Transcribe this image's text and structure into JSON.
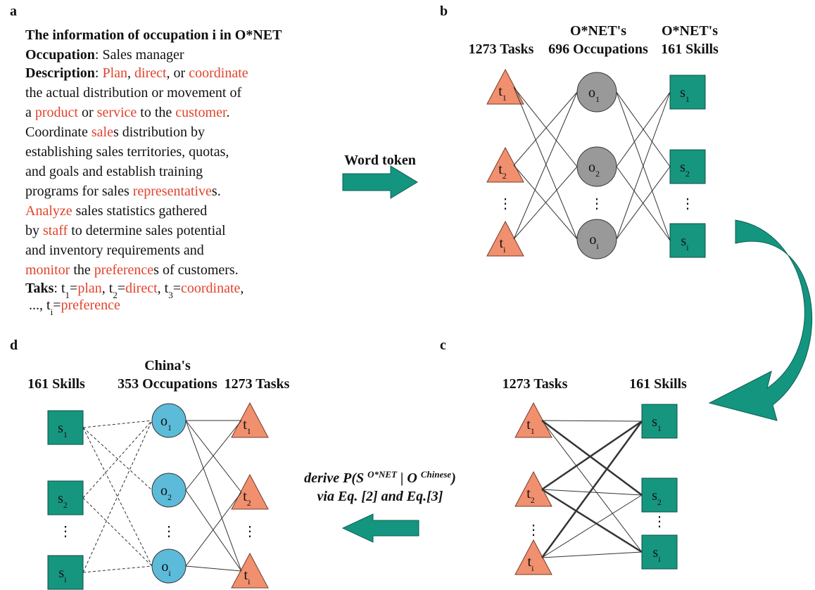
{
  "panel_a": {
    "label": "a",
    "title": "The information of occupation i in O*NET",
    "occupation": {
      "key": "Occupation",
      "value": ": Sales manager"
    },
    "description": {
      "key": "Description",
      "lines": [
        [
          {
            "text": ": "
          },
          {
            "text": "Plan",
            "highlight": true
          },
          {
            "text": ", "
          },
          {
            "text": "direct",
            "highlight": true
          },
          {
            "text": ", or "
          },
          {
            "text": "coordinate",
            "highlight": true
          }
        ],
        [
          {
            "text": "the actual distribution or movement of"
          }
        ],
        [
          {
            "text": "a "
          },
          {
            "text": "product",
            "highlight": true
          },
          {
            "text": " or "
          },
          {
            "text": "service",
            "highlight": true
          },
          {
            "text": " to the "
          },
          {
            "text": "customer",
            "highlight": true
          },
          {
            "text": "."
          }
        ],
        [
          {
            "text": "Coordinate "
          },
          {
            "text": "sale",
            "highlight": true
          },
          {
            "text": "s distribution by"
          }
        ],
        [
          {
            "text": "establishing sales territories, quotas,"
          }
        ],
        [
          {
            "text": "and goals and establish training"
          }
        ],
        [
          {
            "text": "programs for sales "
          },
          {
            "text": "representative",
            "highlight": true
          },
          {
            "text": "s."
          }
        ],
        [
          {
            "text": "Analyze",
            "highlight": true
          },
          {
            "text": " sales statistics gathered"
          }
        ],
        [
          {
            "text": "by "
          },
          {
            "text": "staff",
            "highlight": true
          },
          {
            "text": " to determine sales potential"
          }
        ],
        [
          {
            "text": "and inventory requirements and"
          }
        ],
        [
          {
            "text": "monitor",
            "highlight": true
          },
          {
            "text": " the "
          },
          {
            "text": "preference",
            "highlight": true
          },
          {
            "text": "s of customers."
          }
        ]
      ]
    },
    "tasks": {
      "key": "Taks",
      "lines": [
        [
          {
            "text": ": t"
          },
          {
            "text": "1",
            "sub": true
          },
          {
            "text": "="
          },
          {
            "text": "plan",
            "highlight": true
          },
          {
            "text": ", t"
          },
          {
            "text": "2",
            "sub": true
          },
          {
            "text": "="
          },
          {
            "text": "direct",
            "highlight": true
          },
          {
            "text": ", t"
          },
          {
            "text": "3",
            "sub": true
          },
          {
            "text": "="
          },
          {
            "text": "coordinate",
            "highlight": true
          },
          {
            "text": ","
          }
        ],
        [
          {
            "text": " ..., t"
          },
          {
            "text": "i",
            "sub": true
          },
          {
            "text": "="
          },
          {
            "text": "preference",
            "highlight": true
          }
        ]
      ]
    }
  },
  "panel_b": {
    "label": "b",
    "headers": [
      {
        "lines": [
          "1273 Tasks"
        ]
      },
      {
        "lines": [
          "O*NET's",
          "696 Occupations"
        ]
      },
      {
        "lines": [
          "O*NET's",
          "161 Skills"
        ]
      }
    ],
    "tasks": [
      {
        "letter": "t",
        "sub": "1"
      },
      {
        "letter": "t",
        "sub": "2"
      },
      {
        "letter": "t",
        "sub": "i"
      }
    ],
    "occupations": [
      {
        "letter": "o",
        "sub": "1"
      },
      {
        "letter": "o",
        "sub": "2"
      },
      {
        "letter": "o",
        "sub": "i"
      }
    ],
    "skills": [
      {
        "letter": "s",
        "sub": "1"
      },
      {
        "letter": "s",
        "sub": "2"
      },
      {
        "letter": "s",
        "sub": "i"
      }
    ],
    "gap_marker": "⋮"
  },
  "panel_c": {
    "label": "c",
    "headers": [
      {
        "lines": [
          "1273 Tasks"
        ]
      },
      {
        "lines": [
          "161 Skills"
        ]
      }
    ],
    "tasks": [
      {
        "letter": "t",
        "sub": "1"
      },
      {
        "letter": "t",
        "sub": "2"
      },
      {
        "letter": "t",
        "sub": "i"
      }
    ],
    "skills": [
      {
        "letter": "s",
        "sub": "1"
      },
      {
        "letter": "s",
        "sub": "2"
      },
      {
        "letter": "s",
        "sub": "i"
      }
    ],
    "gap_marker": "⋮"
  },
  "panel_d": {
    "label": "d",
    "headers": [
      {
        "lines": [
          "161 Skills"
        ]
      },
      {
        "lines": [
          "China's",
          "353 Occupations"
        ]
      },
      {
        "lines": [
          "1273 Tasks"
        ]
      }
    ],
    "skills": [
      {
        "letter": "s",
        "sub": "1"
      },
      {
        "letter": "s",
        "sub": "2"
      },
      {
        "letter": "s",
        "sub": "i"
      }
    ],
    "occupations": [
      {
        "letter": "o",
        "sub": "1"
      },
      {
        "letter": "o",
        "sub": "2"
      },
      {
        "letter": "o",
        "sub": "i"
      }
    ],
    "tasks": [
      {
        "letter": "t",
        "sub": "1"
      },
      {
        "letter": "t",
        "sub": "2"
      },
      {
        "letter": "t",
        "sub": "i"
      }
    ],
    "gap_marker": "⋮"
  },
  "word_token_arrow": {
    "label": "Word token"
  },
  "derive_arrow": {
    "lines": [
      [
        {
          "text": "derive P(S "
        },
        {
          "text": "O*NET",
          "sup": true
        },
        {
          "text": " | O "
        },
        {
          "text": "Chinese",
          "sup": true
        },
        {
          "text": ")"
        }
      ],
      [
        {
          "text": "via Eq. [2] and Eq.[3]"
        }
      ]
    ]
  }
}
